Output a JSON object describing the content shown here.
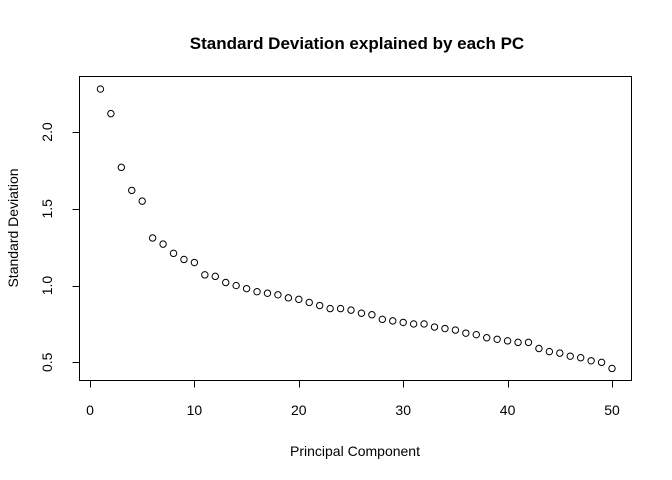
{
  "chart_data": {
    "type": "scatter",
    "title": "Standard Deviation explained by each PC",
    "xlabel": "Principal Component",
    "ylabel": "Standard Deviation",
    "xlim": [
      0,
      50
    ],
    "ylim": [
      0.45,
      2.3
    ],
    "x_ticks": [
      "0",
      "10",
      "20",
      "30",
      "40",
      "50"
    ],
    "y_ticks": [
      "0.5",
      "1.0",
      "1.5",
      "2.0"
    ],
    "grid": false,
    "x": [
      1,
      2,
      3,
      4,
      5,
      6,
      7,
      8,
      9,
      10,
      11,
      12,
      13,
      14,
      15,
      16,
      17,
      18,
      19,
      20,
      21,
      22,
      23,
      24,
      25,
      26,
      27,
      28,
      29,
      30,
      31,
      32,
      33,
      34,
      35,
      36,
      37,
      38,
      39,
      40,
      41,
      42,
      43,
      44,
      45,
      46,
      47,
      48,
      49,
      50
    ],
    "y": [
      2.28,
      2.12,
      1.77,
      1.62,
      1.55,
      1.31,
      1.27,
      1.21,
      1.17,
      1.15,
      1.07,
      1.06,
      1.02,
      1.0,
      0.98,
      0.96,
      0.95,
      0.94,
      0.92,
      0.91,
      0.89,
      0.87,
      0.85,
      0.85,
      0.84,
      0.82,
      0.81,
      0.78,
      0.77,
      0.76,
      0.75,
      0.75,
      0.73,
      0.72,
      0.71,
      0.69,
      0.68,
      0.66,
      0.65,
      0.64,
      0.63,
      0.63,
      0.59,
      0.57,
      0.56,
      0.54,
      0.53,
      0.51,
      0.5,
      0.46
    ]
  }
}
